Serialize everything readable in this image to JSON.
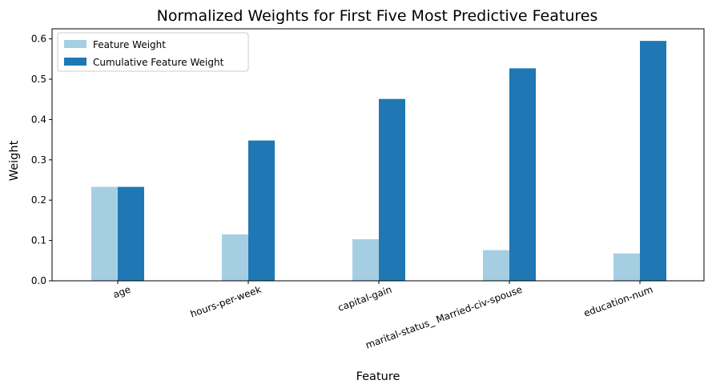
{
  "chart_data": {
    "type": "bar",
    "title": "Normalized Weights for First Five Most Predictive Features",
    "xlabel": "Feature",
    "ylabel": "Weight",
    "categories": [
      "age",
      "hours-per-week",
      "capital-gain",
      "marital-status_ Married-civ-spouse",
      "education-num"
    ],
    "series": [
      {
        "name": "Feature Weight",
        "color": "#a6cee3",
        "values": [
          0.233,
          0.115,
          0.103,
          0.076,
          0.068
        ]
      },
      {
        "name": "Cumulative Feature Weight",
        "color": "#1f78b4",
        "values": [
          0.233,
          0.348,
          0.451,
          0.527,
          0.595
        ]
      }
    ],
    "ylim": [
      0,
      0.625
    ],
    "yticks": [
      "0.0",
      "0.1",
      "0.2",
      "0.3",
      "0.4",
      "0.5",
      "0.6"
    ],
    "xtick_rotation_deg": 20,
    "grid": false,
    "legend_position": "top-left"
  }
}
